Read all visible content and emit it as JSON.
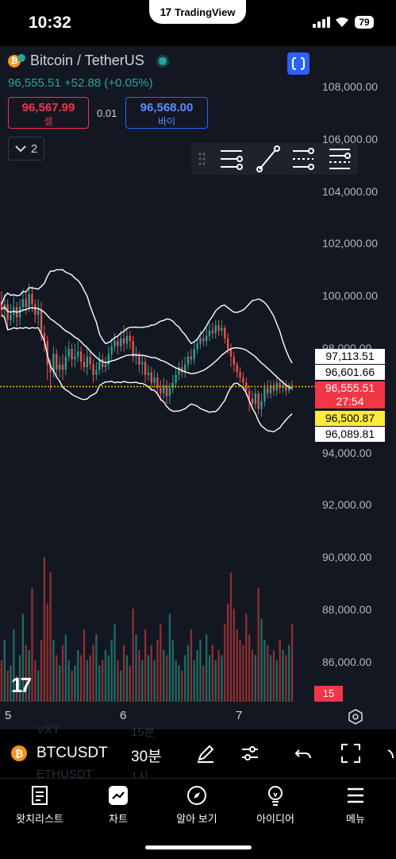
{
  "status_bar": {
    "time": "10:32",
    "battery": "79",
    "app_banner": "TradingView",
    "app_logo": "17"
  },
  "chart_header": {
    "symbol_title": "Bitcoin / TetherUS",
    "coin_glyph": "₿",
    "price_change_line": "96,555.51  +52.88 (+0.05%)",
    "sell_price": "96,567.99",
    "sell_label": "셀",
    "spread": "0.01",
    "buy_price": "96,568.00",
    "buy_label": "바이",
    "indicator_count": "2"
  },
  "price_axis": {
    "labels": [
      "108,000.00",
      "106,000.00",
      "104,000.00",
      "102,000.00",
      "100,000.00",
      "98,000.00",
      "94,000.00",
      "92,000.00",
      "90,000.00",
      "88,000.00",
      "86,000.00"
    ]
  },
  "price_tags": [
    {
      "value": "97,113.51",
      "bg": "#ffffff",
      "color": "#000000"
    },
    {
      "value": "96,601.66",
      "bg": "#ffffff",
      "color": "#000000"
    },
    {
      "value": "96,555.51",
      "bg": "#f23645",
      "color": "#ffffff"
    },
    {
      "value": "27:54",
      "bg": "#f23645",
      "color": "#ffffff"
    },
    {
      "value": "96,500.87",
      "bg": "#ffeb3b",
      "color": "#000000"
    },
    {
      "value": "96,089.81",
      "bg": "#ffffff",
      "color": "#000000"
    }
  ],
  "volume_badge": "15",
  "time_axis": {
    "labels": [
      "5",
      "6",
      "7"
    ]
  },
  "bottom_toolbar": {
    "symbol": "BTCUSDT",
    "interval": "30분",
    "ghost_symbol_1": "VXT",
    "ghost_interval_1": "15분",
    "ghost_symbol_2": "ETHUSDT",
    "ghost_interval_2": "1시"
  },
  "tabs": [
    {
      "label": "왓치리스트",
      "icon": "list-icon"
    },
    {
      "label": "차트",
      "icon": "chart-icon"
    },
    {
      "label": "알아 보기",
      "icon": "compass-icon"
    },
    {
      "label": "아이디어",
      "icon": "lightbulb-icon"
    },
    {
      "label": "메뉴",
      "icon": "hamburger-icon"
    }
  ],
  "colors": {
    "bg": "#131722",
    "up": "#26a69a",
    "down": "#ef5350",
    "accent": "#2962ff",
    "current_price_line": "#ffb300"
  },
  "chart_data": {
    "type": "candlestick",
    "symbol": "BTCUSDT",
    "interval": "30분",
    "ylim": [
      85000,
      109000
    ],
    "x_tick_labels": [
      "5",
      "6",
      "7"
    ],
    "indicators": [
      "Bollinger Bands"
    ],
    "current_price": 96555.51,
    "candles": [
      [
        99800,
        99500,
        100200,
        99200
      ],
      [
        99500,
        99700,
        100100,
        99100
      ],
      [
        99700,
        99100,
        99900,
        98700
      ],
      [
        99100,
        99300,
        99700,
        98900
      ],
      [
        99300,
        99600,
        100000,
        99000
      ],
      [
        99600,
        99200,
        99800,
        98800
      ],
      [
        99200,
        99600,
        99900,
        98900
      ],
      [
        99600,
        99900,
        100300,
        99400
      ],
      [
        99900,
        99600,
        100200,
        99300
      ],
      [
        99600,
        100100,
        100500,
        99400
      ],
      [
        100100,
        99700,
        100400,
        99400
      ],
      [
        99700,
        99300,
        99900,
        99000
      ],
      [
        99300,
        99500,
        99900,
        98900
      ],
      [
        99500,
        98600,
        99800,
        98300
      ],
      [
        98600,
        98300,
        98900,
        97900
      ],
      [
        98300,
        97400,
        98500,
        96800
      ],
      [
        97400,
        97100,
        97600,
        96400
      ],
      [
        97100,
        97800,
        98100,
        96900
      ],
      [
        97800,
        97200,
        98000,
        96900
      ],
      [
        97200,
        97400,
        97700,
        96900
      ],
      [
        97400,
        97200,
        97800,
        96800
      ],
      [
        97200,
        97700,
        98100,
        97000
      ],
      [
        97700,
        98000,
        98300,
        97500
      ],
      [
        98000,
        97600,
        98200,
        97300
      ],
      [
        97600,
        97700,
        98200,
        97300
      ],
      [
        97700,
        97900,
        98300,
        97500
      ],
      [
        97900,
        97500,
        98100,
        97200
      ],
      [
        97500,
        97300,
        97800,
        97100
      ],
      [
        97300,
        97700,
        98000,
        97000
      ],
      [
        97700,
        97400,
        97900,
        97200
      ],
      [
        97400,
        97000,
        97600,
        96700
      ],
      [
        97000,
        97200,
        97500,
        96800
      ],
      [
        97200,
        97600,
        97900,
        97000
      ],
      [
        97600,
        97300,
        97800,
        97100
      ],
      [
        97300,
        97400,
        97700,
        97100
      ],
      [
        97400,
        97800,
        98100,
        97200
      ],
      [
        97800,
        98100,
        98400,
        97600
      ],
      [
        98100,
        98300,
        98600,
        97900
      ],
      [
        98300,
        98100,
        98500,
        97800
      ],
      [
        98100,
        98400,
        98700,
        97900
      ],
      [
        98400,
        98200,
        98900,
        97900
      ],
      [
        98200,
        98500,
        98800,
        98000
      ],
      [
        98500,
        98300,
        98700,
        98000
      ],
      [
        98300,
        97700,
        98500,
        97500
      ],
      [
        97700,
        97800,
        98100,
        97400
      ],
      [
        97800,
        97400,
        97900,
        97100
      ],
      [
        97400,
        97500,
        97800,
        97000
      ],
      [
        97500,
        97000,
        97700,
        96700
      ],
      [
        97000,
        97100,
        97400,
        96800
      ],
      [
        97100,
        96700,
        97300,
        96400
      ],
      [
        96700,
        96900,
        97200,
        96500
      ],
      [
        96900,
        96500,
        97100,
        96200
      ],
      [
        96500,
        96300,
        96800,
        96000
      ],
      [
        96300,
        96600,
        96900,
        96100
      ],
      [
        96600,
        96200,
        96800,
        95900
      ],
      [
        96200,
        96500,
        96700,
        95900
      ],
      [
        96500,
        96700,
        97000,
        96300
      ],
      [
        96700,
        97000,
        97300,
        96500
      ],
      [
        97000,
        97300,
        97500,
        96800
      ],
      [
        97300,
        97100,
        97600,
        96900
      ],
      [
        97100,
        97400,
        97700,
        96900
      ],
      [
        97400,
        97700,
        97900,
        97200
      ],
      [
        97700,
        97600,
        98000,
        97400
      ],
      [
        97600,
        98000,
        98300,
        97400
      ],
      [
        98000,
        98200,
        98400,
        97800
      ],
      [
        98200,
        98400,
        98700,
        98000
      ],
      [
        98400,
        98300,
        98600,
        98100
      ],
      [
        98300,
        98500,
        98800,
        98100
      ],
      [
        98500,
        98700,
        99000,
        98300
      ],
      [
        98700,
        98600,
        99000,
        98400
      ],
      [
        98600,
        98900,
        99100,
        98400
      ],
      [
        98900,
        98700,
        99100,
        98500
      ],
      [
        98700,
        98800,
        99100,
        98500
      ],
      [
        98800,
        98400,
        98900,
        98200
      ],
      [
        98400,
        98000,
        98600,
        97800
      ],
      [
        98000,
        97700,
        98200,
        97300
      ],
      [
        97700,
        97400,
        97900,
        97100
      ],
      [
        97400,
        97100,
        97500,
        96900
      ],
      [
        97100,
        96900,
        97300,
        96700
      ],
      [
        96900,
        96700,
        97100,
        96400
      ],
      [
        96700,
        96400,
        96900,
        96200
      ],
      [
        96400,
        96100,
        96600,
        95600
      ],
      [
        96100,
        95900,
        96400,
        95700
      ],
      [
        95900,
        96300,
        96500,
        95700
      ],
      [
        96300,
        95700,
        96400,
        95500
      ],
      [
        95700,
        96000,
        96300,
        95400
      ],
      [
        96000,
        96500,
        96700,
        95800
      ],
      [
        96500,
        96300,
        96800,
        96100
      ],
      [
        96300,
        96600,
        96800,
        96100
      ],
      [
        96600,
        96400,
        96800,
        96200
      ],
      [
        96400,
        96700,
        96900,
        96200
      ],
      [
        96700,
        96500,
        96800,
        96300
      ],
      [
        96500,
        96600,
        96800,
        96300
      ],
      [
        96600,
        96400,
        96800,
        96200
      ],
      [
        96400,
        96600,
        96700,
        96300
      ],
      [
        96600,
        96550,
        96800,
        96400
      ]
    ],
    "volume": [
      8,
      12,
      6,
      7,
      14,
      5,
      9,
      17,
      11,
      10,
      22,
      8,
      6,
      12,
      28,
      19,
      25,
      12,
      9,
      7,
      11,
      13,
      8,
      6,
      7,
      10,
      9,
      14,
      8,
      9,
      11,
      13,
      7,
      8,
      10,
      9,
      12,
      15,
      8,
      6,
      11,
      9,
      7,
      18,
      13,
      10,
      8,
      14,
      9,
      11,
      8,
      12,
      15,
      10,
      9,
      17,
      12,
      8,
      7,
      6,
      9,
      11,
      14,
      8,
      10,
      12,
      7,
      13,
      9,
      11,
      8,
      10,
      9,
      15,
      19,
      25,
      18,
      14,
      12,
      11,
      17,
      13,
      10,
      9,
      22,
      16,
      12,
      11,
      9,
      10,
      8,
      12,
      10,
      9,
      11,
      15
    ]
  }
}
